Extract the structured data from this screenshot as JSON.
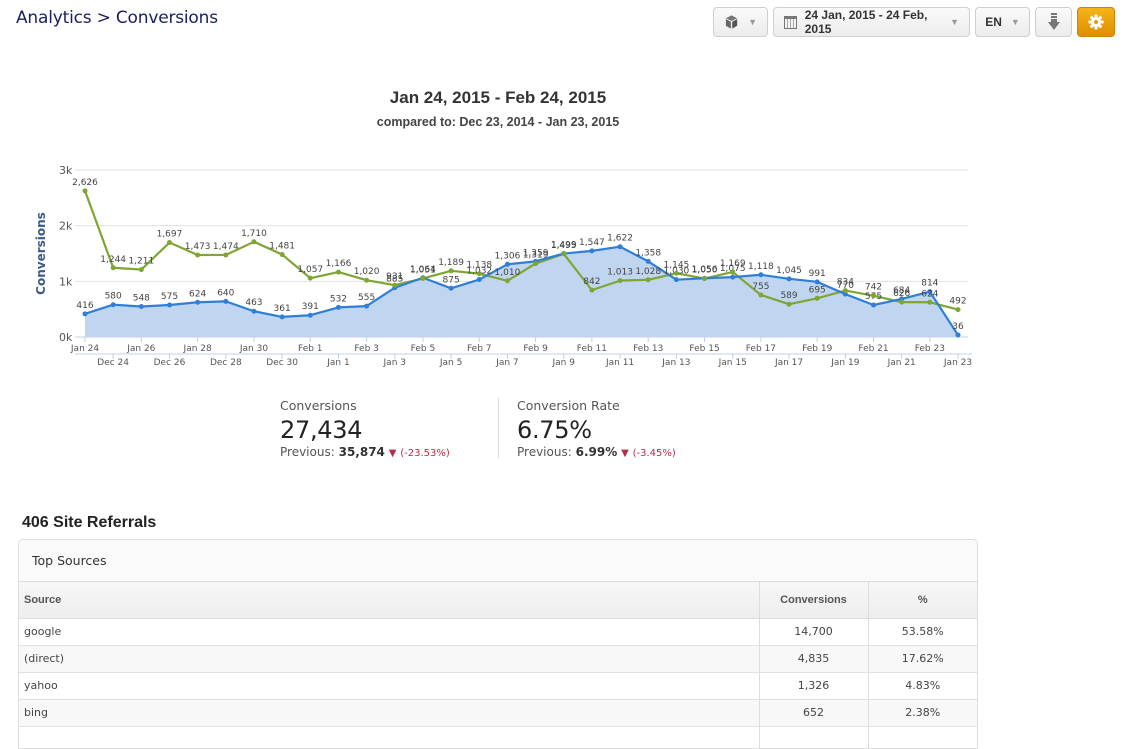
{
  "breadcrumb": {
    "parent": "Analytics",
    "separator": ">",
    "current": "Conversions"
  },
  "toolbar": {
    "cube_icon": "cube-icon",
    "date_range": "24 Jan, 2015 - 24 Feb, 2015",
    "language": "EN",
    "download_icon": "download-icon",
    "settings_icon": "gear-icon",
    "accent_color": "#f0a30a"
  },
  "chart_header": {
    "title": "Jan 24, 2015 - Feb 24, 2015",
    "subtitle": "compared to: Dec 23, 2014 - Jan 23, 2015"
  },
  "chart_data": {
    "type": "area",
    "title": "Jan 24, 2015 - Feb 24, 2015",
    "subtitle": "compared to: Dec 23, 2014 - Jan 23, 2015",
    "ylabel": "Conversions",
    "xlabel": "",
    "ylim": [
      0,
      3000
    ],
    "yticks": [
      "0k",
      "1k",
      "2k",
      "3k"
    ],
    "ytick_values": [
      0,
      1000,
      2000,
      3000
    ],
    "grid": true,
    "legend": "none",
    "x_primary": [
      "Jan 24",
      "Jan 25",
      "Jan 26",
      "Jan 27",
      "Jan 28",
      "Jan 29",
      "Jan 30",
      "Jan 31",
      "Feb 1",
      "Feb 2",
      "Feb 3",
      "Feb 4",
      "Feb 5",
      "Feb 6",
      "Feb 7",
      "Feb 8",
      "Feb 9",
      "Feb 10",
      "Feb 11",
      "Feb 12",
      "Feb 13",
      "Feb 14",
      "Feb 15",
      "Feb 16",
      "Feb 17",
      "Feb 18",
      "Feb 19",
      "Feb 20",
      "Feb 21",
      "Feb 22",
      "Feb 23",
      "Feb 24"
    ],
    "x_primary_labels_shown": [
      "Jan 24",
      "Jan 26",
      "Jan 28",
      "Jan 30",
      "Feb 1",
      "Feb 3",
      "Feb 5",
      "Feb 7",
      "Feb 9",
      "Feb 11",
      "Feb 13",
      "Feb 15",
      "Feb 17",
      "Feb 19",
      "Feb 21",
      "Feb 23"
    ],
    "x_secondary_labels_shown": [
      "Dec 24",
      "Dec 26",
      "Dec 28",
      "Dec 30",
      "Jan 1",
      "Jan 3",
      "Jan 5",
      "Jan 7",
      "Jan 9",
      "Jan 11",
      "Jan 13",
      "Jan 15",
      "Jan 17",
      "Jan 19",
      "Jan 21",
      "Jan 23"
    ],
    "series": [
      {
        "name": "Jan 24, 2015 - Feb 24, 2015",
        "color": "#2f7ed8",
        "fill": "#c0d6f0",
        "style": "area",
        "values": [
          416,
          580,
          548,
          575,
          624,
          640,
          463,
          361,
          391,
          532,
          555,
          885,
          1064,
          875,
          1032,
          1306,
          1359,
          1499,
          1547,
          1622,
          1358,
          1030,
          1056,
          1075,
          1118,
          1045,
          991,
          770,
          575,
          684,
          814,
          36
        ]
      },
      {
        "name": "Dec 23, 2014 - Jan 23, 2015",
        "color": "#7fa532",
        "style": "line",
        "values": [
          2626,
          1244,
          1211,
          1697,
          1473,
          1474,
          1710,
          1481,
          1057,
          1166,
          1020,
          931,
          1051,
          1189,
          1138,
          1010,
          1319,
          1495,
          842,
          1013,
          1028,
          1145,
          1050,
          1169,
          755,
          589,
          695,
          834,
          742,
          626,
          624,
          492
        ]
      }
    ]
  },
  "kpis": [
    {
      "label": "Conversions",
      "value": "27,434",
      "previous_label": "Previous:",
      "previous_value": "35,874",
      "trend_icon": "down-triangle-icon",
      "change": "(-23.53%)"
    },
    {
      "label": "Conversion Rate",
      "value": "6.75%",
      "previous_label": "Previous:",
      "previous_value": "6.99%",
      "trend_icon": "down-triangle-icon",
      "change": "(-3.45%)"
    }
  ],
  "referrals": {
    "title": "406 Site Referrals",
    "panel_title": "Top Sources",
    "columns": [
      "Source",
      "Conversions",
      "%"
    ],
    "rows": [
      {
        "source": "google",
        "conversions": "14,700",
        "pct": "53.58%"
      },
      {
        "source": "(direct)",
        "conversions": "4,835",
        "pct": "17.62%"
      },
      {
        "source": "yahoo",
        "conversions": "1,326",
        "pct": "4.83%"
      },
      {
        "source": "bing",
        "conversions": "652",
        "pct": "2.38%"
      }
    ]
  }
}
